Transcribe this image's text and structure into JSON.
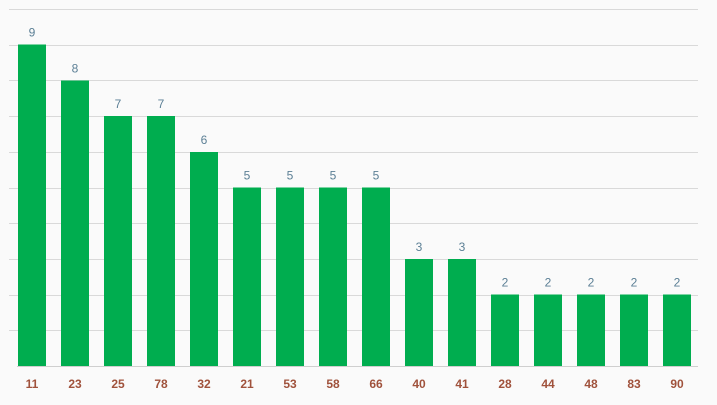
{
  "colors": {
    "bar": "#00ad4f",
    "data_label": "#5b7f95",
    "x_tick_label": "#a0523c",
    "background": "#fafafa"
  },
  "chart_data": {
    "type": "bar",
    "title": "",
    "xlabel": "",
    "ylabel": "",
    "categories": [
      "11",
      "23",
      "25",
      "78",
      "32",
      "21",
      "53",
      "58",
      "66",
      "40",
      "41",
      "28",
      "44",
      "48",
      "83",
      "90"
    ],
    "values": [
      9,
      8,
      7,
      7,
      6,
      5,
      5,
      5,
      5,
      3,
      3,
      2,
      2,
      2,
      2,
      2
    ],
    "ylim": [
      0,
      10
    ],
    "y_grid_step": 1,
    "grid": true,
    "legend": "none",
    "data_labels": true
  }
}
